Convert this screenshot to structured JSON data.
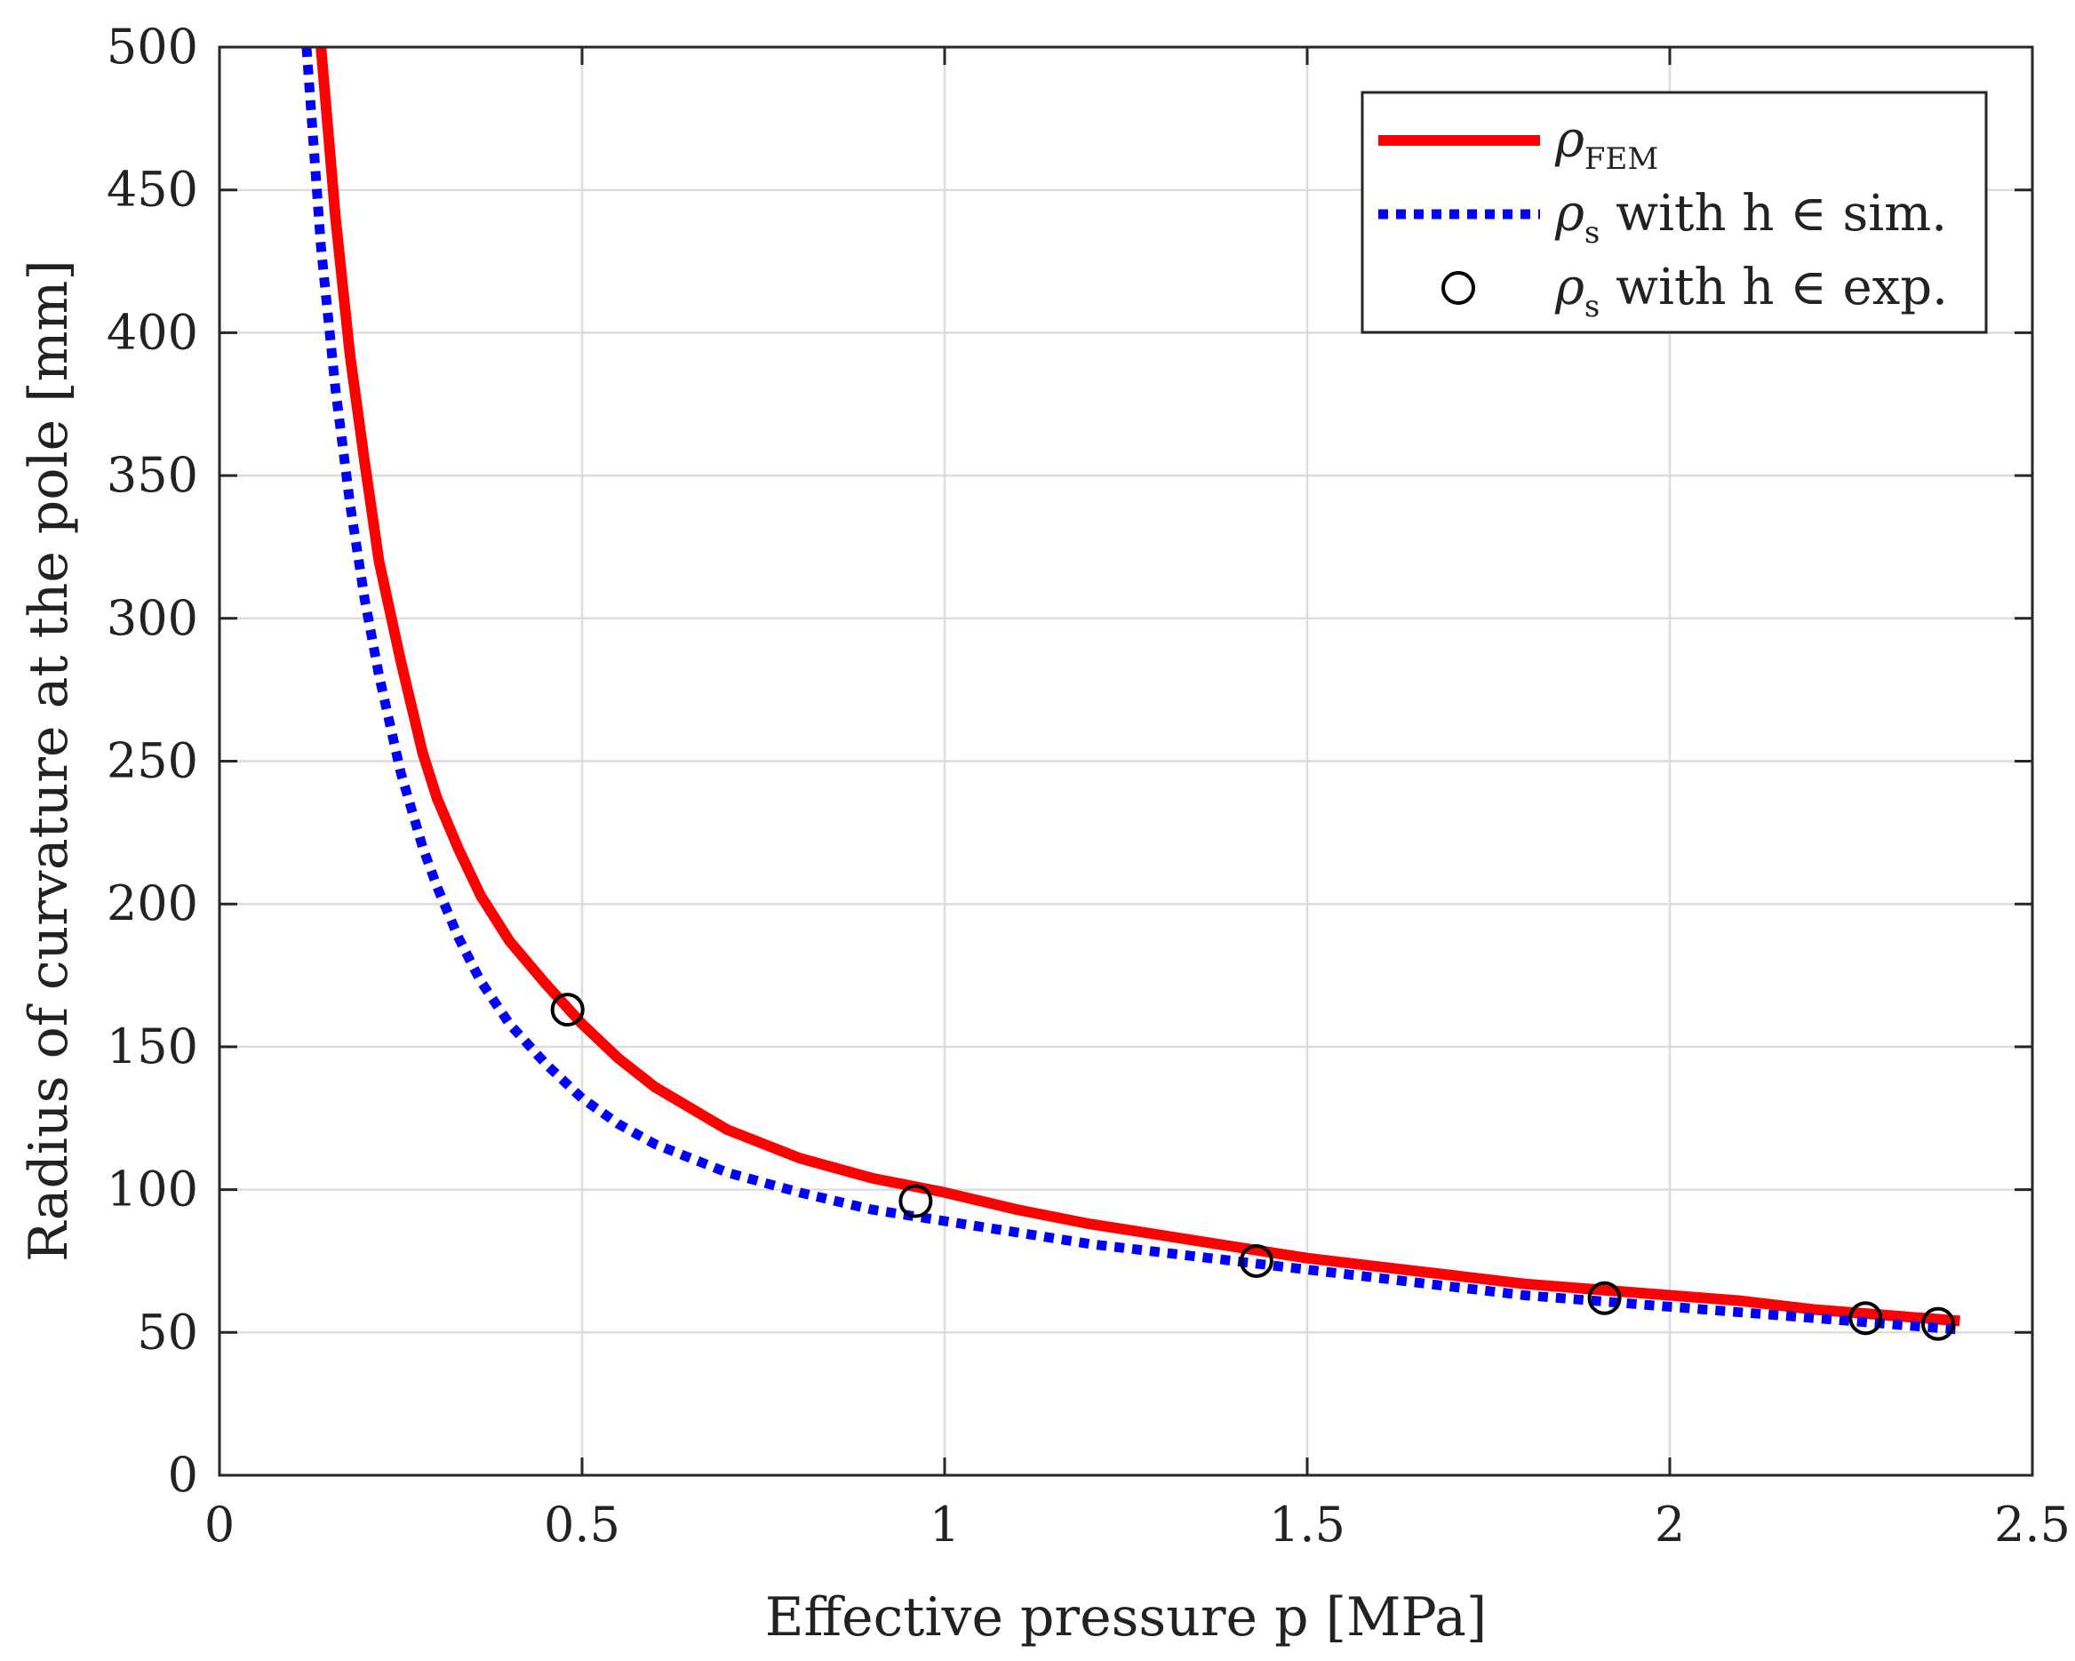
{
  "chart_data": {
    "type": "line",
    "title": "",
    "xlabel": "Effective pressure p [MPa]",
    "ylabel": "Radius of curvature at the pole [mm]",
    "xlim": [
      0,
      2.5
    ],
    "ylim": [
      0,
      500
    ],
    "xticks": [
      0,
      0.5,
      1,
      1.5,
      2,
      2.5
    ],
    "xtick_labels": [
      "0",
      "0.5",
      "1",
      "1.5",
      "2",
      "2.5"
    ],
    "yticks": [
      0,
      50,
      100,
      150,
      200,
      250,
      300,
      350,
      400,
      450,
      500
    ],
    "ytick_labels": [
      "0",
      "50",
      "100",
      "150",
      "200",
      "250",
      "300",
      "350",
      "400",
      "450",
      "500"
    ],
    "grid": true,
    "legend_position": "top-right",
    "series": [
      {
        "name": "ρFEM",
        "label_main": "ρ",
        "label_sub": "FEM",
        "label_rest": "",
        "style": "solid",
        "color": "#ff0000",
        "x": [
          0.14,
          0.16,
          0.18,
          0.2,
          0.22,
          0.25,
          0.28,
          0.3,
          0.33,
          0.36,
          0.4,
          0.45,
          0.5,
          0.55,
          0.6,
          0.7,
          0.8,
          0.9,
          1.0,
          1.1,
          1.2,
          1.3,
          1.4,
          1.5,
          1.6,
          1.7,
          1.8,
          1.9,
          2.0,
          2.1,
          2.2,
          2.3,
          2.4
        ],
        "y": [
          500,
          440,
          392,
          355,
          320,
          285,
          253,
          237,
          219,
          203,
          187,
          172,
          158,
          146,
          136,
          121,
          111,
          104,
          99,
          93,
          88,
          84,
          80,
          76,
          73,
          70,
          67,
          65,
          63,
          61,
          58,
          56,
          54
        ]
      },
      {
        "name": "ρs with h ∈ sim.",
        "label_main": "ρ",
        "label_sub": "s",
        "label_rest": " with h ∈ sim.",
        "style": "dotted",
        "color": "#0000ff",
        "x": [
          0.12,
          0.14,
          0.16,
          0.18,
          0.2,
          0.22,
          0.25,
          0.28,
          0.3,
          0.33,
          0.36,
          0.4,
          0.45,
          0.5,
          0.55,
          0.6,
          0.7,
          0.8,
          0.9,
          1.0,
          1.1,
          1.2,
          1.3,
          1.4,
          1.5,
          1.6,
          1.7,
          1.8,
          1.9,
          2.0,
          2.1,
          2.2,
          2.3,
          2.4
        ],
        "y": [
          500,
          430,
          380,
          340,
          307,
          280,
          246,
          220,
          206,
          188,
          173,
          158,
          144,
          132,
          123,
          116,
          106,
          99,
          93,
          89,
          85,
          81,
          78,
          75,
          72,
          69,
          66,
          63,
          61,
          59,
          57,
          55,
          53,
          51
        ]
      },
      {
        "name": "ρs with h ∈ exp.",
        "label_main": "ρ",
        "label_sub": "s",
        "label_rest": " with h ∈ exp.",
        "style": "markers",
        "color": "#000000",
        "x": [
          0.48,
          0.96,
          1.43,
          1.91,
          2.27,
          2.37
        ],
        "y": [
          163,
          96,
          75,
          62,
          55,
          53
        ]
      }
    ]
  }
}
